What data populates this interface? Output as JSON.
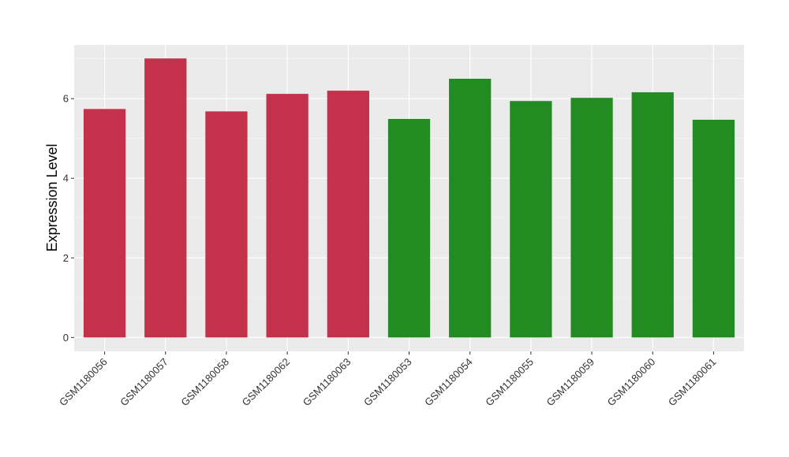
{
  "chart_data": {
    "type": "bar",
    "y_label": "Expression Level",
    "categories": [
      "GSM1180056",
      "GSM1180057",
      "GSM1180058",
      "GSM1180062",
      "GSM1180063",
      "GSM1180053",
      "GSM1180054",
      "GSM1180055",
      "GSM1180059",
      "GSM1180060",
      "GSM1180061"
    ],
    "values": [
      5.74,
      7.01,
      5.68,
      6.12,
      6.2,
      5.49,
      6.5,
      5.94,
      6.02,
      6.16,
      5.47
    ],
    "colors": [
      "#C3314A",
      "#C3314A",
      "#C3314A",
      "#C3314A",
      "#C3314A",
      "#228B22",
      "#228B22",
      "#228B22",
      "#228B22",
      "#228B22",
      "#228B22"
    ],
    "ylim": [
      -0.35,
      7.35
    ],
    "yticks": [
      0,
      2,
      4,
      6
    ],
    "yminorticks": [
      1,
      3,
      5,
      7
    ],
    "grid": true
  }
}
